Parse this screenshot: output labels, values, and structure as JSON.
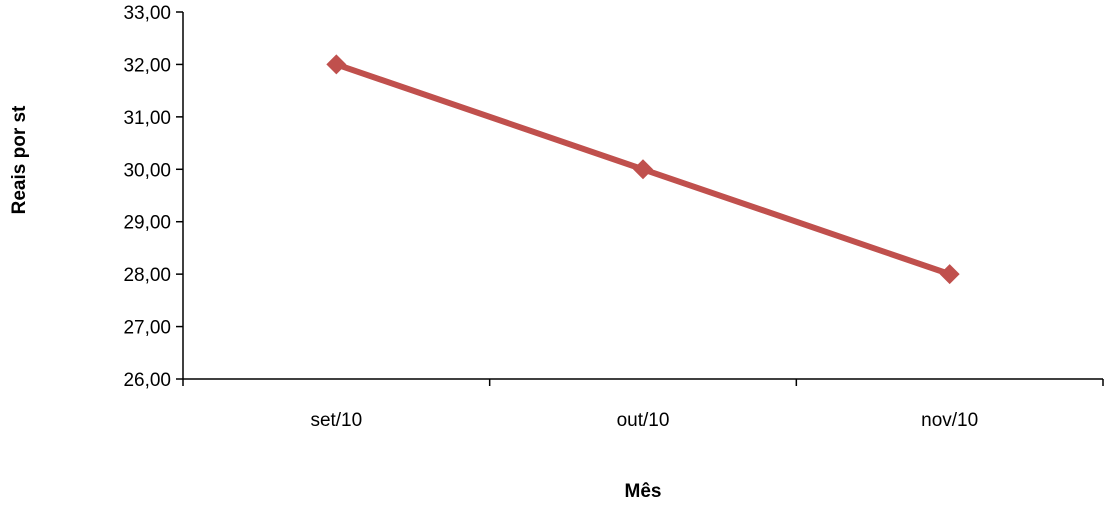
{
  "chart_data": {
    "type": "line",
    "title": "",
    "xlabel": "Mês",
    "ylabel": "Reais por st",
    "categories": [
      "set/10",
      "out/10",
      "nov/10"
    ],
    "series": [
      {
        "values": [
          32.0,
          30.0,
          28.0
        ],
        "color": "#c0504d",
        "marker": "diamond"
      }
    ],
    "ylim": [
      26,
      33
    ],
    "y_ticks": [
      "26,00",
      "27,00",
      "28,00",
      "29,00",
      "30,00",
      "31,00",
      "32,00",
      "33,00"
    ],
    "grid": false,
    "legend": "none"
  }
}
